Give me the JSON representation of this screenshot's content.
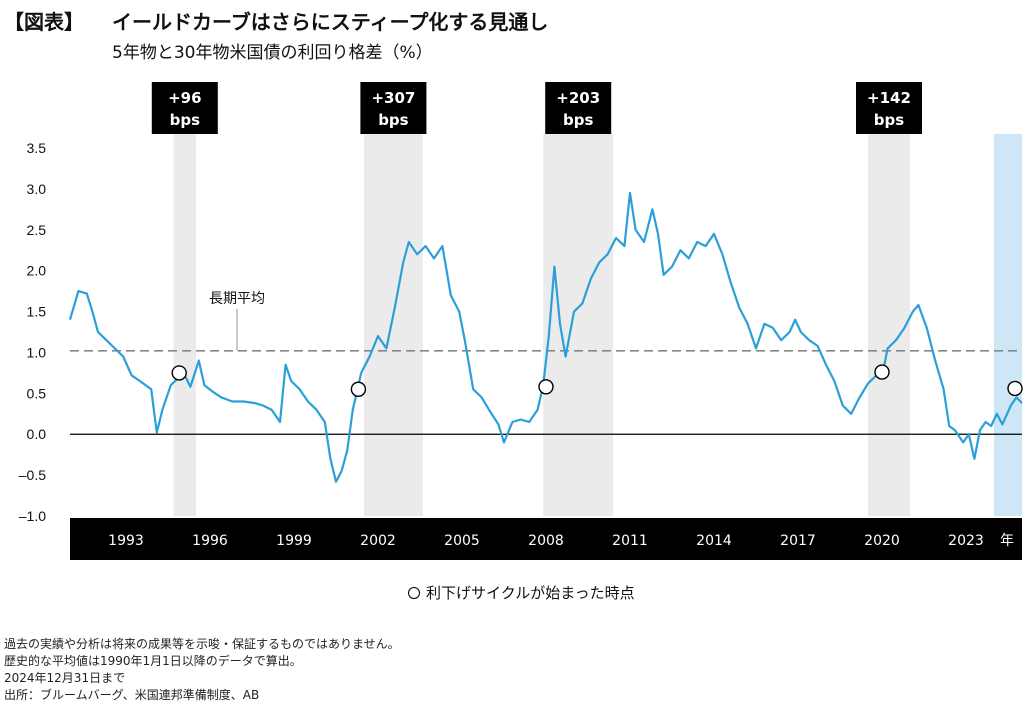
{
  "header": {
    "tag": "【図表】",
    "title": "イールドカーブはさらにスティープ化する見通し",
    "subtitle": "5年物と30年物米国債の利回り格差（%）"
  },
  "chart_data": {
    "type": "line",
    "y_ticks": [
      "3.5",
      "3.0",
      "2.5",
      "2.0",
      "1.5",
      "1.0",
      "0.5",
      "0.0",
      "–0.5",
      "–1.0"
    ],
    "ylim": [
      -1.0,
      3.5
    ],
    "x_ticks": [
      "1993",
      "1996",
      "1999",
      "2002",
      "2005",
      "2008",
      "2011",
      "2014",
      "2017",
      "2020",
      "2023"
    ],
    "xlim": [
      1991.0,
      2025.0
    ],
    "x_unit_label": "年",
    "average": {
      "label": "長期平均",
      "value": 1.02
    },
    "series": [
      {
        "color": "#2b9fd9",
        "points": [
          [
            1991.0,
            1.4
          ],
          [
            1991.3,
            1.75
          ],
          [
            1991.6,
            1.72
          ],
          [
            1991.8,
            1.5
          ],
          [
            1992.0,
            1.25
          ],
          [
            1992.3,
            1.15
          ],
          [
            1992.6,
            1.05
          ],
          [
            1992.9,
            0.95
          ],
          [
            1993.2,
            0.72
          ],
          [
            1993.5,
            0.65
          ],
          [
            1993.9,
            0.55
          ],
          [
            1994.1,
            0.02
          ],
          [
            1994.3,
            0.3
          ],
          [
            1994.6,
            0.6
          ],
          [
            1994.9,
            0.7
          ],
          [
            1995.1,
            0.72
          ],
          [
            1995.3,
            0.58
          ],
          [
            1995.6,
            0.9
          ],
          [
            1995.8,
            0.6
          ],
          [
            1996.1,
            0.52
          ],
          [
            1996.4,
            0.45
          ],
          [
            1996.8,
            0.4
          ],
          [
            1997.2,
            0.4
          ],
          [
            1997.6,
            0.38
          ],
          [
            1997.9,
            0.35
          ],
          [
            1998.2,
            0.3
          ],
          [
            1998.5,
            0.15
          ],
          [
            1998.7,
            0.85
          ],
          [
            1998.9,
            0.65
          ],
          [
            1999.2,
            0.55
          ],
          [
            1999.5,
            0.4
          ],
          [
            1999.8,
            0.3
          ],
          [
            2000.1,
            0.15
          ],
          [
            2000.3,
            -0.3
          ],
          [
            2000.5,
            -0.58
          ],
          [
            2000.7,
            -0.45
          ],
          [
            2000.9,
            -0.2
          ],
          [
            2001.1,
            0.3
          ],
          [
            2001.4,
            0.75
          ],
          [
            2001.7,
            0.95
          ],
          [
            2002.0,
            1.2
          ],
          [
            2002.3,
            1.05
          ],
          [
            2002.6,
            1.55
          ],
          [
            2002.9,
            2.1
          ],
          [
            2003.1,
            2.35
          ],
          [
            2003.4,
            2.2
          ],
          [
            2003.7,
            2.3
          ],
          [
            2004.0,
            2.15
          ],
          [
            2004.3,
            2.3
          ],
          [
            2004.6,
            1.7
          ],
          [
            2004.9,
            1.5
          ],
          [
            2005.1,
            1.15
          ],
          [
            2005.4,
            0.55
          ],
          [
            2005.7,
            0.45
          ],
          [
            2006.0,
            0.28
          ],
          [
            2006.3,
            0.12
          ],
          [
            2006.5,
            -0.1
          ],
          [
            2006.8,
            0.15
          ],
          [
            2007.1,
            0.18
          ],
          [
            2007.4,
            0.15
          ],
          [
            2007.7,
            0.3
          ],
          [
            2007.9,
            0.6
          ],
          [
            2008.1,
            1.2
          ],
          [
            2008.3,
            2.05
          ],
          [
            2008.5,
            1.35
          ],
          [
            2008.7,
            0.95
          ],
          [
            2009.0,
            1.5
          ],
          [
            2009.3,
            1.6
          ],
          [
            2009.6,
            1.9
          ],
          [
            2009.9,
            2.1
          ],
          [
            2010.2,
            2.2
          ],
          [
            2010.5,
            2.4
          ],
          [
            2010.8,
            2.3
          ],
          [
            2011.0,
            2.95
          ],
          [
            2011.2,
            2.5
          ],
          [
            2011.5,
            2.35
          ],
          [
            2011.8,
            2.75
          ],
          [
            2012.0,
            2.45
          ],
          [
            2012.2,
            1.95
          ],
          [
            2012.5,
            2.05
          ],
          [
            2012.8,
            2.25
          ],
          [
            2013.1,
            2.15
          ],
          [
            2013.4,
            2.35
          ],
          [
            2013.7,
            2.3
          ],
          [
            2014.0,
            2.45
          ],
          [
            2014.3,
            2.2
          ],
          [
            2014.6,
            1.85
          ],
          [
            2014.9,
            1.55
          ],
          [
            2015.2,
            1.35
          ],
          [
            2015.5,
            1.05
          ],
          [
            2015.8,
            1.35
          ],
          [
            2016.1,
            1.3
          ],
          [
            2016.4,
            1.15
          ],
          [
            2016.7,
            1.25
          ],
          [
            2016.9,
            1.4
          ],
          [
            2017.1,
            1.25
          ],
          [
            2017.4,
            1.15
          ],
          [
            2017.7,
            1.08
          ],
          [
            2018.0,
            0.85
          ],
          [
            2018.3,
            0.65
          ],
          [
            2018.6,
            0.35
          ],
          [
            2018.9,
            0.25
          ],
          [
            2019.2,
            0.45
          ],
          [
            2019.5,
            0.62
          ],
          [
            2019.8,
            0.72
          ],
          [
            2020.0,
            0.7
          ],
          [
            2020.2,
            1.05
          ],
          [
            2020.5,
            1.15
          ],
          [
            2020.8,
            1.3
          ],
          [
            2021.1,
            1.5
          ],
          [
            2021.3,
            1.58
          ],
          [
            2021.6,
            1.3
          ],
          [
            2021.9,
            0.9
          ],
          [
            2022.2,
            0.55
          ],
          [
            2022.4,
            0.1
          ],
          [
            2022.6,
            0.05
          ],
          [
            2022.9,
            -0.1
          ],
          [
            2023.1,
            0.0
          ],
          [
            2023.3,
            -0.3
          ],
          [
            2023.5,
            0.05
          ],
          [
            2023.7,
            0.15
          ],
          [
            2023.9,
            0.1
          ],
          [
            2024.1,
            0.25
          ],
          [
            2024.3,
            0.12
          ],
          [
            2024.6,
            0.35
          ],
          [
            2024.8,
            0.45
          ],
          [
            2025.0,
            0.38
          ]
        ]
      }
    ],
    "cut_cycles": [
      {
        "start": 1994.7,
        "end": 1995.5,
        "label_value": "+96",
        "label_unit": "bps"
      },
      {
        "start": 2001.5,
        "end": 2003.6,
        "label_value": "+307",
        "label_unit": "bps"
      },
      {
        "start": 2007.9,
        "end": 2010.4,
        "label_value": "+203",
        "label_unit": "bps"
      },
      {
        "start": 2019.5,
        "end": 2021.0,
        "label_value": "+142",
        "label_unit": "bps"
      }
    ],
    "forecast_band": {
      "start": 2024.0,
      "end": 2025.0,
      "color": "#cde7f7"
    },
    "cut_points": [
      {
        "x": 1994.9,
        "y": 0.75
      },
      {
        "x": 2001.3,
        "y": 0.55
      },
      {
        "x": 2008.0,
        "y": 0.58
      },
      {
        "x": 2020.0,
        "y": 0.76
      },
      {
        "x": 2024.75,
        "y": 0.56
      }
    ],
    "colors": {
      "line": "#2b9fd9",
      "shade": "#ebebeb",
      "label_box": "#000000",
      "axis_bar": "#000000",
      "average_line": "#888888"
    }
  },
  "legend": {
    "label": "利下げサイクルが始まった時点"
  },
  "notes": [
    "過去の実績や分析は将来の成果等を示唆・保証するものではありません。",
    "歴史的な平均値は1990年1月1日以降のデータで算出。",
    "2024年12月31日まで",
    "出所：ブルームバーグ、米国連邦準備制度、AB"
  ]
}
